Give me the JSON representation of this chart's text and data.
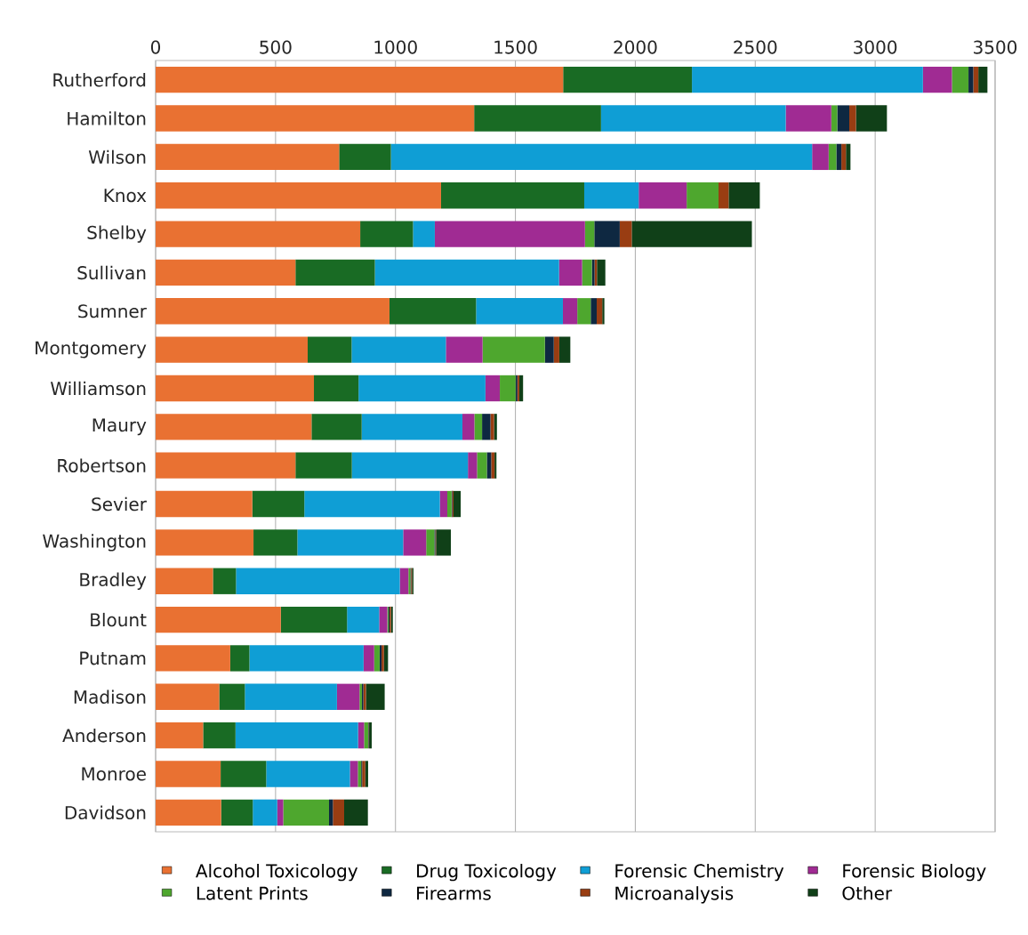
{
  "chart_data": {
    "type": "bar",
    "orientation": "horizontal",
    "stacked": true,
    "grid": "x",
    "legend": "bottom",
    "xlim": [
      0,
      3500
    ],
    "xticks": [
      0,
      500,
      1000,
      1500,
      2000,
      2500,
      3000,
      3500
    ],
    "categories": [
      "Rutherford",
      "Hamilton",
      "Wilson",
      "Knox",
      "Shelby",
      "Sullivan",
      "Sumner",
      "Montgomery",
      "Williamson",
      "Maury",
      "Robertson",
      "Sevier",
      "Washington",
      "Bradley",
      "Blount",
      "Putnam",
      "Madison",
      "Anderson",
      "Monroe",
      "Davidson"
    ],
    "series": [
      {
        "name": "Alcohol Toxicology",
        "color": "#e97132",
        "values": [
          1699,
          1328,
          765,
          1190,
          853,
          583,
          975,
          634,
          660,
          650,
          583,
          403,
          408,
          239,
          522,
          311,
          265,
          198,
          271,
          273
        ]
      },
      {
        "name": "Drug Toxicology",
        "color": "#196b24",
        "values": [
          537,
          529,
          216,
          597,
          220,
          331,
          361,
          183,
          186,
          209,
          235,
          217,
          183,
          96,
          276,
          80,
          107,
          135,
          190,
          132
        ]
      },
      {
        "name": "Forensic Chemistry",
        "color": "#0f9ed5",
        "values": [
          963,
          770,
          1756,
          227,
          91,
          768,
          362,
          393,
          529,
          420,
          484,
          565,
          441,
          683,
          134,
          476,
          384,
          511,
          349,
          102
        ]
      },
      {
        "name": "Forensic Biology",
        "color": "#a02b93",
        "values": [
          121,
          190,
          69,
          200,
          626,
          96,
          60,
          153,
          60,
          50,
          38,
          31,
          96,
          36,
          34,
          44,
          94,
          25,
          33,
          25
        ]
      },
      {
        "name": "Latent Prints",
        "color": "#4ea72e",
        "values": [
          69,
          25,
          32,
          133,
          39,
          41,
          56,
          260,
          66,
          32,
          41,
          18,
          34,
          8,
          5,
          23,
          10,
          17,
          14,
          191
        ]
      },
      {
        "name": "Firearms",
        "color": "#0e2841",
        "values": [
          20,
          50,
          21,
          0,
          106,
          11,
          25,
          37,
          7,
          35,
          18,
          3,
          4,
          3,
          4,
          8,
          6,
          2,
          4,
          16
        ]
      },
      {
        "name": "Microanalysis",
        "color": "#993d12",
        "values": [
          21,
          28,
          19,
          42,
          50,
          10,
          23,
          23,
          8,
          15,
          14,
          5,
          3,
          4,
          6,
          10,
          11,
          2,
          13,
          47
        ]
      },
      {
        "name": "Other",
        "color": "#104018",
        "values": [
          38,
          129,
          19,
          130,
          501,
          35,
          9,
          46,
          16,
          12,
          8,
          30,
          62,
          6,
          8,
          17,
          78,
          11,
          12,
          99
        ]
      }
    ]
  }
}
